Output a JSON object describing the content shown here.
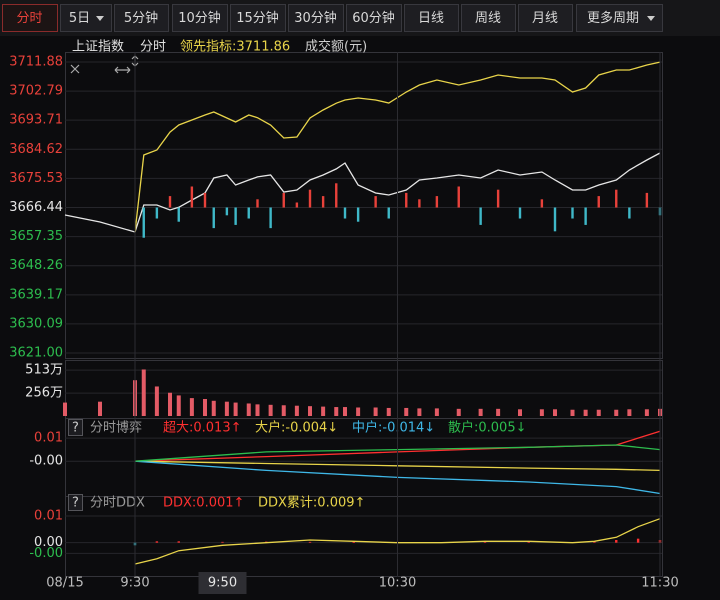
{
  "toolbar": {
    "tabs": [
      {
        "label": "分时"
      },
      {
        "label": "5日",
        "dropdown": true
      },
      {
        "label": "5分钟"
      },
      {
        "label": "10分钟"
      },
      {
        "label": "15分钟"
      },
      {
        "label": "30分钟"
      },
      {
        "label": "60分钟"
      },
      {
        "label": "日线"
      },
      {
        "label": "周线"
      },
      {
        "label": "月线"
      },
      {
        "label": "更多周期",
        "dropdown": true
      }
    ],
    "active": 0
  },
  "chart_data": [
    {
      "type": "line",
      "title": "上证指数",
      "subtitle": "分时",
      "x": [
        -16,
        -8,
        0,
        2,
        5,
        8,
        10,
        13,
        16,
        18,
        21,
        23,
        26,
        28,
        31,
        34,
        37,
        40,
        43,
        46,
        48,
        51,
        55,
        58,
        62,
        65,
        69,
        74,
        79,
        83,
        88,
        93,
        96,
        100,
        103,
        106,
        110,
        113,
        117,
        120
      ],
      "xlim": [
        -16,
        120
      ],
      "ylim": [
        3621.0,
        3711.88
      ],
      "yticks": [
        3711.88,
        3702.79,
        3693.71,
        3684.62,
        3675.53,
        3666.44,
        3657.35,
        3648.26,
        3639.17,
        3630.09,
        {
          "value": 3621,
          "label": "3621.00"
        }
      ],
      "ytick_colors": [
        "#e8413a",
        "#e8413a",
        "#e8413a",
        "#e8413a",
        "#e8413a",
        "#e6e6e6",
        "#2dbd4e",
        "#2dbd4e",
        "#2dbd4e",
        "#2dbd4e",
        "#2dbd4e"
      ],
      "prev_close": 3666.44,
      "grid": true,
      "series": [
        {
          "color": "#e6e6e6",
          "values": [
            3664.1,
            3661.91,
            3658.79,
            3667.22,
            3667.22,
            3665.66,
            3666.5,
            3668.78,
            3670.97,
            3675.65,
            3676.59,
            3673.47,
            3675.03,
            3676.0,
            3676.59,
            3671.28,
            3671.91,
            3675.03,
            3676.59,
            3678.5,
            3680.34,
            3673.47,
            3670.97,
            3670.34,
            3671.91,
            3675.03,
            3675.65,
            3676.59,
            3675.65,
            3678.15,
            3676.59,
            3677.53,
            3675.03,
            3671.91,
            3671.91,
            3673.47,
            3675.03,
            3678.15,
            3681.27,
            3683.46
          ]
        },
        {
          "name": "领先指标:3711.86",
          "color": "#e8d44a",
          "values": [
            null,
            null,
            3658.79,
            3682.84,
            3684.4,
            3690.0,
            3692.21,
            3693.77,
            3695.33,
            3696.26,
            3694.39,
            3693.14,
            3695.33,
            3694.5,
            3692.21,
            3688.15,
            3688.46,
            3694.39,
            3696.89,
            3699.0,
            3700.01,
            3700.64,
            3700.01,
            3699.08,
            3702.51,
            3704.7,
            3706.26,
            3704.7,
            3706.26,
            3707.82,
            3706.88,
            3706.88,
            3706.26,
            3702.51,
            3703.76,
            3707.82,
            3709.38,
            3709.38,
            3710.94,
            3711.86
          ]
        },
        {
          "type": "bar",
          "up_color": "#e8413a",
          "down_color": "#3fb8c8",
          "x": [
            2,
            5,
            8,
            10,
            13,
            16,
            18,
            21,
            23,
            26,
            28,
            31,
            34,
            37,
            40,
            43,
            46,
            48,
            51,
            55,
            58,
            62,
            65,
            69,
            74,
            79,
            83,
            88,
            93,
            96,
            100,
            103,
            106,
            110,
            113,
            117,
            120
          ],
          "values": [
            3657,
            3663,
            3670,
            3662,
            3673,
            3671,
            3660,
            3664,
            3661,
            3663,
            3669,
            3660,
            3671,
            3668,
            3672,
            3670,
            3674,
            3663,
            3662,
            3670,
            3663,
            3671,
            3669,
            3670,
            3673,
            3661,
            3672,
            3663,
            3669,
            3659,
            3663,
            3661,
            3670,
            3672,
            3663,
            3671,
            3664
          ]
        }
      ]
    },
    {
      "type": "bar",
      "title": "成交额(元)",
      "x": [
        -16,
        -8,
        0,
        2,
        5,
        8,
        10,
        13,
        16,
        18,
        21,
        23,
        26,
        28,
        31,
        34,
        37,
        40,
        43,
        46,
        48,
        51,
        55,
        58,
        62,
        65,
        69,
        74,
        79,
        83,
        88,
        93,
        96,
        100,
        103,
        106,
        110,
        113,
        117,
        120
      ],
      "xlim": [
        -16,
        120
      ],
      "ylim": [
        0,
        570
      ],
      "yticks": [
        {
          "value": 513,
          "label": "513万"
        },
        {
          "value": 256,
          "label": "256万"
        }
      ],
      "ytick_colors": [
        "#e6e6e6",
        "#e6e6e6"
      ],
      "grid": true,
      "color": "#e35b66",
      "values": [
        150,
        160,
        400,
        520,
        330,
        260,
        230,
        200,
        190,
        170,
        160,
        150,
        140,
        130,
        125,
        120,
        115,
        110,
        105,
        100,
        100,
        95,
        95,
        90,
        90,
        85,
        85,
        80,
        80,
        80,
        75,
        75,
        75,
        70,
        70,
        70,
        70,
        75,
        75,
        80
      ]
    },
    {
      "type": "line",
      "title": "分时博弈",
      "help": "?",
      "x": [
        0,
        30,
        60,
        90,
        110,
        120
      ],
      "xlim": [
        -16,
        120
      ],
      "ylim": [
        -0.0155,
        0.0135
      ],
      "yticks": [
        0.01,
        {
          "value": 0,
          "label": "-0.00"
        }
      ],
      "ytick_colors": [
        "#e8413a",
        "#e6e6e6"
      ],
      "grid": true,
      "series": [
        {
          "name": "超大:0.013↑",
          "color": "#ff3030",
          "values": [
            0,
            0.002,
            0.004,
            0.006,
            0.007,
            0.013
          ]
        },
        {
          "name": "大户:-0.004↓",
          "color": "#e8d44a",
          "values": [
            0,
            -0.001,
            -0.002,
            -0.003,
            -0.0035,
            -0.004
          ]
        },
        {
          "name": "中户:-0.014↓",
          "color": "#3fb8e8",
          "values": [
            0,
            -0.004,
            -0.007,
            -0.009,
            -0.011,
            -0.014
          ]
        },
        {
          "name": "散户:0.005↓",
          "color": "#2dbd4e",
          "values": [
            0,
            0.004,
            0.005,
            0.006,
            0.007,
            0.005
          ]
        }
      ]
    },
    {
      "type": "line",
      "title": "分时DDX",
      "help": "?",
      "x": [
        0,
        5,
        10,
        20,
        30,
        40,
        50,
        60,
        70,
        80,
        90,
        100,
        105,
        110,
        115,
        120
      ],
      "xlim": [
        -16,
        120
      ],
      "ylim": [
        -0.011,
        0.0115
      ],
      "yticks": [
        0.01,
        {
          "value": 0,
          "label": "0.00"
        },
        {
          "value": -0.004,
          "label": "-0.00"
        }
      ],
      "ytick_colors": [
        "#e8413a",
        "#e6e6e6",
        "#2dbd4e"
      ],
      "grid": true,
      "xticks": [
        {
          "value": -16,
          "label": "08/15"
        },
        {
          "value": 0,
          "label": "9:30"
        },
        {
          "value": 20,
          "label": "9:50",
          "highlight": true
        },
        {
          "value": 60,
          "label": "10:30"
        },
        {
          "value": 120,
          "label": "11:30"
        }
      ],
      "series": [
        {
          "name": "DDX:0.001↑",
          "type": "bar",
          "color": "#ff3030",
          "down_color": "#3fb8c8",
          "values": [
            -0.001,
            0.0005,
            0.0005,
            0.0003,
            0.0004,
            0.0003,
            0.0002,
            0.0003,
            0.0002,
            0.0003,
            0.0003,
            0.0002,
            0.0004,
            0.001,
            0.0015,
            0.001
          ]
        },
        {
          "name": "DDX累计:0.009↑",
          "color": "#e8d44a",
          "values": [
            -0.008,
            -0.006,
            -0.003,
            -0.001,
            0,
            0.001,
            0.0005,
            0,
            0,
            0.0005,
            0.0005,
            0,
            0.0005,
            0.002,
            0.006,
            0.009
          ]
        }
      ]
    }
  ]
}
